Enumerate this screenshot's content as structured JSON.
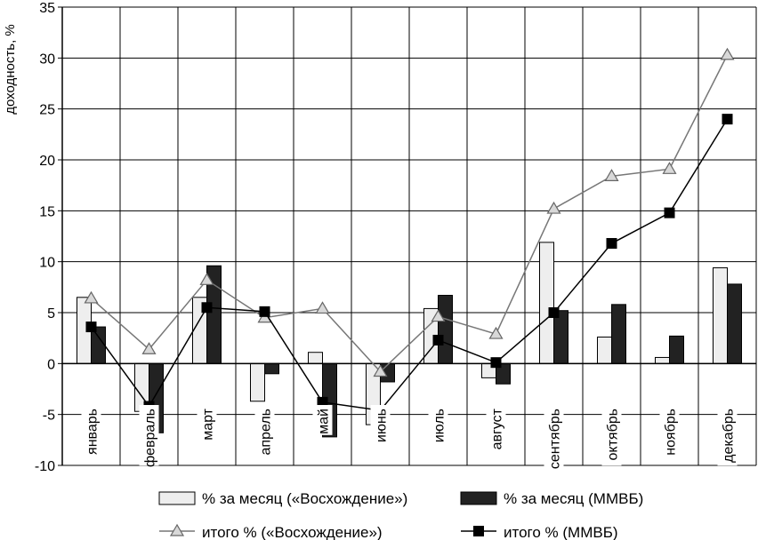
{
  "chart_data": {
    "type": "bar",
    "ylabel": "доходность, %",
    "ylim": [
      -10,
      35
    ],
    "yticks": [
      -10,
      -5,
      0,
      5,
      10,
      15,
      20,
      25,
      30,
      35
    ],
    "grid": true,
    "legend_position": "bottom",
    "categories": [
      "январь",
      "февраль",
      "март",
      "апрель",
      "май",
      "июнь",
      "июль",
      "август",
      "сентябрь",
      "октябрь",
      "ноябрь",
      "декабрь"
    ],
    "series": [
      {
        "name": "% за месяц («Восхождение»)",
        "kind": "bar",
        "color": "#eeeeee",
        "values": [
          6.5,
          -4.7,
          6.5,
          -3.7,
          1.1,
          -6.0,
          5.4,
          -1.4,
          11.9,
          2.6,
          0.6,
          9.4
        ]
      },
      {
        "name": "% за месяц (ММВБ)",
        "kind": "bar",
        "color": "#222222",
        "values": [
          3.6,
          -6.8,
          9.6,
          -1.0,
          -7.2,
          -1.8,
          6.7,
          -2.0,
          5.2,
          5.8,
          2.7,
          7.8
        ]
      },
      {
        "name": "итого % («Восхождение»)",
        "kind": "line",
        "marker": "triangle",
        "color": "#777777",
        "values": [
          6.4,
          1.4,
          8.2,
          4.5,
          5.4,
          -0.8,
          4.6,
          2.9,
          15.2,
          18.4,
          19.1,
          30.3
        ]
      },
      {
        "name": "итого % (ММВБ)",
        "kind": "line",
        "marker": "square",
        "color": "#000000",
        "values": [
          3.6,
          -4.2,
          5.5,
          5.1,
          -3.8,
          -4.6,
          2.3,
          0.1,
          5.0,
          11.8,
          14.8,
          24.0
        ]
      }
    ]
  }
}
